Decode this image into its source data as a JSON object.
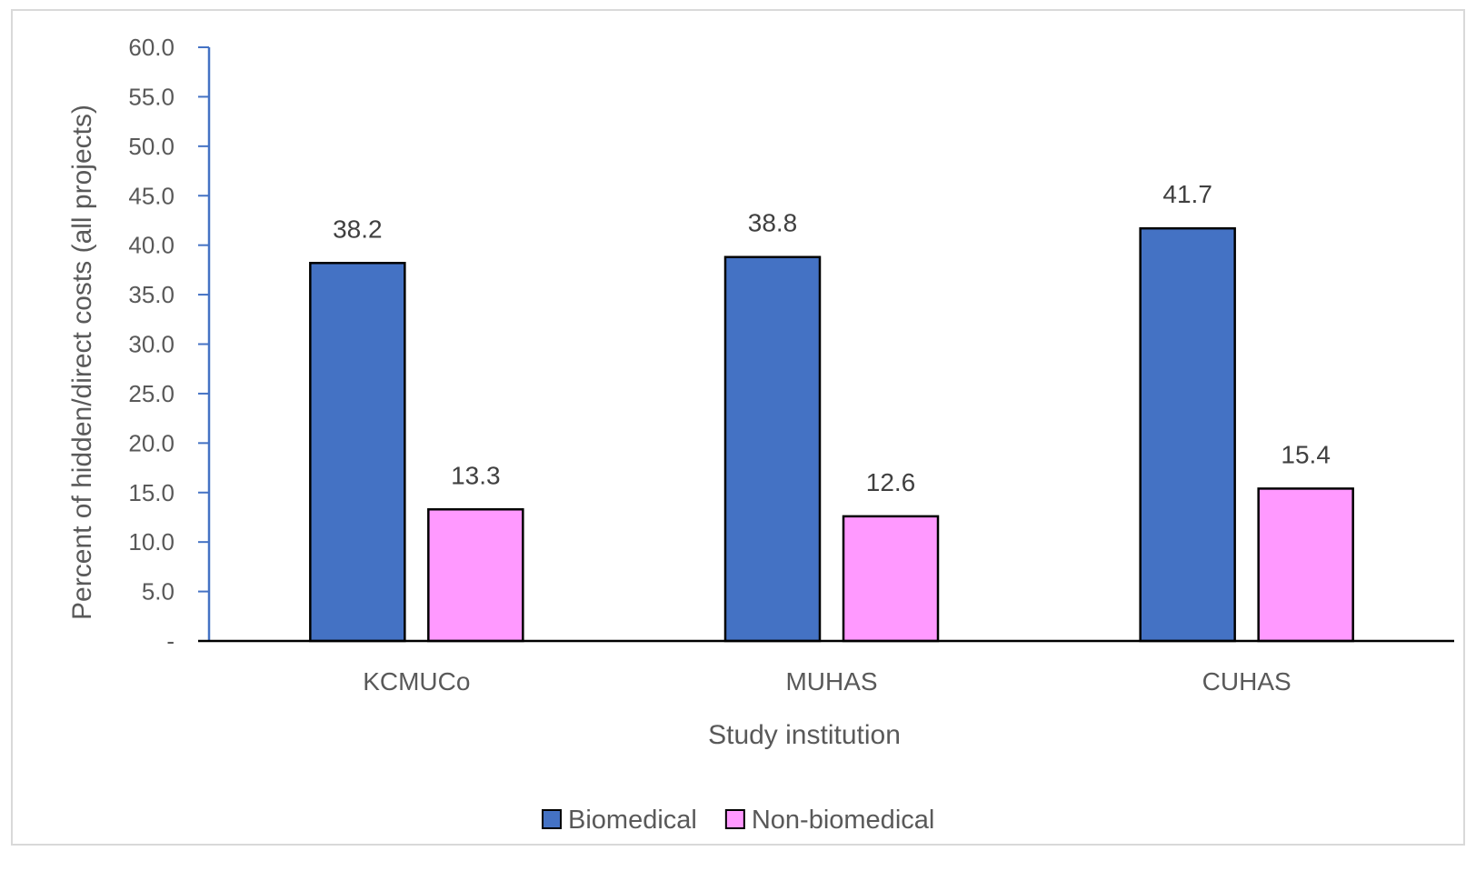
{
  "chart_data": {
    "type": "bar",
    "categories": [
      "KCMUCo",
      "MUHAS",
      "CUHAS"
    ],
    "series": [
      {
        "name": "Biomedical",
        "values": [
          38.2,
          38.8,
          41.7
        ],
        "color": "#4472c4"
      },
      {
        "name": "Non-biomedical",
        "values": [
          13.3,
          12.6,
          15.4
        ],
        "color": "#ff99ff"
      }
    ],
    "xlabel": "Study institution",
    "ylabel": "Percent of hidden/direct costs (all projects)",
    "ylim": [
      0,
      60
    ],
    "ytick_values": [
      0,
      5,
      10,
      15,
      20,
      25,
      30,
      35,
      40,
      45,
      50,
      55,
      60
    ],
    "ytick_labels": [
      "-",
      "5.0",
      "10.0",
      "15.0",
      "20.0",
      "25.0",
      "30.0",
      "35.0",
      "40.0",
      "45.0",
      "50.0",
      "55.0",
      "60.0"
    ],
    "data_labels": [
      [
        "38.2",
        "38.8",
        "41.7"
      ],
      [
        "13.3",
        "12.6",
        "15.4"
      ]
    ],
    "legend_position": "bottom-center",
    "grid": false,
    "axis_color": "#4472c4",
    "bar_outline_color": "#000000"
  }
}
